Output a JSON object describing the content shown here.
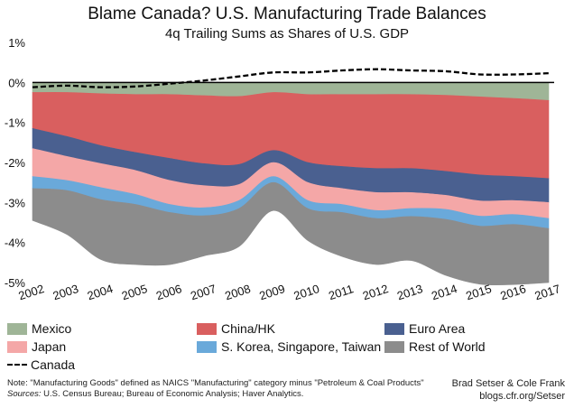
{
  "title": "Blame Canada? U.S. Manufacturing Trade Balances",
  "subtitle": "4q Trailing Sums as Shares of U.S. GDP",
  "chart_data": {
    "type": "area",
    "stacked": true,
    "x": [
      2002,
      2003,
      2004,
      2005,
      2006,
      2007,
      2008,
      2009,
      2010,
      2011,
      2012,
      2013,
      2014,
      2015,
      2016,
      2017
    ],
    "x_tick_labels": [
      "2002",
      "2003",
      "2004",
      "2005",
      "2006",
      "2007",
      "2008",
      "2009",
      "2010",
      "2011",
      "2012",
      "2013",
      "2014",
      "2015",
      "2016",
      "2017"
    ],
    "ylim": [
      -5,
      1
    ],
    "y_ticks": [
      1,
      0,
      -1,
      -2,
      -3,
      -4,
      -5
    ],
    "y_tick_labels": [
      "1%",
      "0%",
      "-1%",
      "-2%",
      "-3%",
      "-4%",
      "-5%"
    ],
    "grid": false,
    "zero_line": true,
    "series": [
      {
        "name": "Mexico",
        "color": "#9fb597",
        "values": [
          -0.25,
          -0.25,
          -0.28,
          -0.3,
          -0.3,
          -0.33,
          -0.35,
          -0.25,
          -0.3,
          -0.3,
          -0.3,
          -0.3,
          -0.32,
          -0.36,
          -0.4,
          -0.45
        ]
      },
      {
        "name": "China/HK",
        "color": "#d95f5f",
        "values": [
          -0.9,
          -1.1,
          -1.3,
          -1.45,
          -1.6,
          -1.7,
          -1.7,
          -1.45,
          -1.7,
          -1.8,
          -1.85,
          -1.85,
          -1.9,
          -1.95,
          -1.95,
          -1.95
        ]
      },
      {
        "name": "Euro Area",
        "color": "#4a6090",
        "values": [
          -0.5,
          -0.5,
          -0.45,
          -0.45,
          -0.55,
          -0.55,
          -0.5,
          -0.3,
          -0.5,
          -0.55,
          -0.6,
          -0.6,
          -0.6,
          -0.65,
          -0.6,
          -0.6
        ]
      },
      {
        "name": "Japan",
        "color": "#f4a7a7",
        "values": [
          -0.7,
          -0.6,
          -0.6,
          -0.6,
          -0.6,
          -0.55,
          -0.4,
          -0.35,
          -0.45,
          -0.4,
          -0.45,
          -0.4,
          -0.35,
          -0.38,
          -0.35,
          -0.4
        ]
      },
      {
        "name": "S. Korea, Singapore, Taiwan",
        "color": "#6aa9da",
        "values": [
          -0.3,
          -0.25,
          -0.3,
          -0.25,
          -0.2,
          -0.2,
          -0.2,
          -0.15,
          -0.2,
          -0.2,
          -0.2,
          -0.2,
          -0.25,
          -0.25,
          -0.25,
          -0.25
        ]
      },
      {
        "name": "Rest of World",
        "color": "#8c8c8c",
        "values": [
          -0.8,
          -1.1,
          -1.5,
          -1.5,
          -1.3,
          -1.0,
          -0.95,
          -0.7,
          -0.8,
          -1.1,
          -1.15,
          -1.1,
          -1.4,
          -1.45,
          -1.5,
          -1.35
        ]
      }
    ],
    "line_series": [
      {
        "name": "Canada",
        "color": "#000000",
        "style": "dashed",
        "values": [
          -0.12,
          -0.08,
          -0.12,
          -0.1,
          -0.03,
          0.05,
          0.15,
          0.25,
          0.25,
          0.3,
          0.33,
          0.3,
          0.28,
          0.2,
          0.2,
          0.23
        ]
      }
    ],
    "legend": {
      "placement": "bottom",
      "entries": [
        "Mexico",
        "China/HK",
        "Euro Area",
        "Japan",
        "S. Korea, Singapore, Taiwan",
        "Rest of World",
        "Canada"
      ]
    }
  },
  "note": "Note: \"Manufacturing Goods\" defined as NAICS \"Manufacturing\" category minus \"Petroleum & Coal Products\"",
  "sources_label": "Sources:",
  "sources": "U.S. Census Bureau; Bureau of Economic Analysis; Haver Analytics.",
  "credit_line1": "Brad Setser & Cole Frank",
  "credit_line2": "blogs.cfr.org/Setser"
}
